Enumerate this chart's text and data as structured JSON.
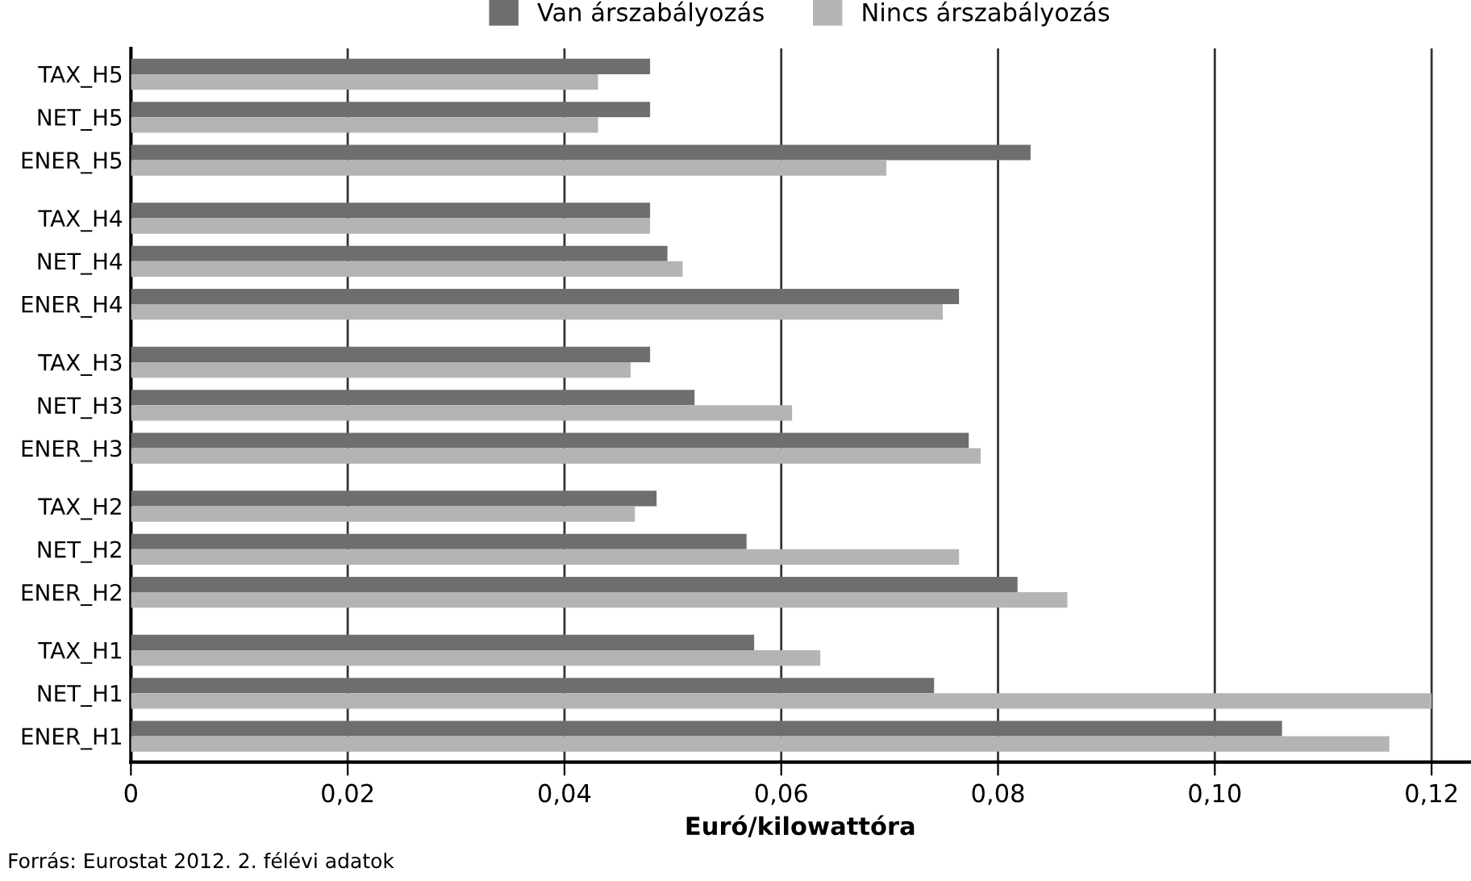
{
  "chart_data": {
    "type": "bar",
    "orientation": "horizontal",
    "categories": [
      "TAX_H5",
      "NET_H5",
      "ENER_H5",
      "TAX_H4",
      "NET_H4",
      "ENER_H4",
      "TAX_H3",
      "NET_H3",
      "ENER_H3",
      "TAX_H2",
      "NET_H2",
      "ENER_H2",
      "TAX_H1",
      "NET_H1",
      "ENER_H1"
    ],
    "series": [
      {
        "name": "Van árszabályozás",
        "color": "#6f6e6c",
        "values": [
          0.0479,
          0.0479,
          0.083,
          0.0479,
          0.0495,
          0.0764,
          0.0479,
          0.052,
          0.0773,
          0.0485,
          0.0568,
          0.0818,
          0.0575,
          0.0741,
          0.1062
        ]
      },
      {
        "name": "Nincs árszabályozás",
        "color": "#b5b4b2",
        "values": [
          0.0431,
          0.0431,
          0.0697,
          0.0479,
          0.0509,
          0.0749,
          0.0461,
          0.061,
          0.0784,
          0.0465,
          0.0764,
          0.0864,
          0.0636,
          0.12,
          0.1161
        ]
      }
    ],
    "xlabel": "Euró/kilowattóra",
    "xlim": [
      0,
      0.1235
    ],
    "xticks": [
      {
        "value": 0,
        "label": "0"
      },
      {
        "value": 0.02,
        "label": "0,02"
      },
      {
        "value": 0.04,
        "label": "0,04"
      },
      {
        "value": 0.06,
        "label": "0,06"
      },
      {
        "value": 0.08,
        "label": "0,08"
      },
      {
        "value": 0.1,
        "label": "0,10"
      },
      {
        "value": 0.12,
        "label": "0,12"
      }
    ],
    "grid": "x",
    "legend": "top",
    "annotations": [
      "Forrás: Eurostat 2012. 2. félévi adatok"
    ]
  }
}
